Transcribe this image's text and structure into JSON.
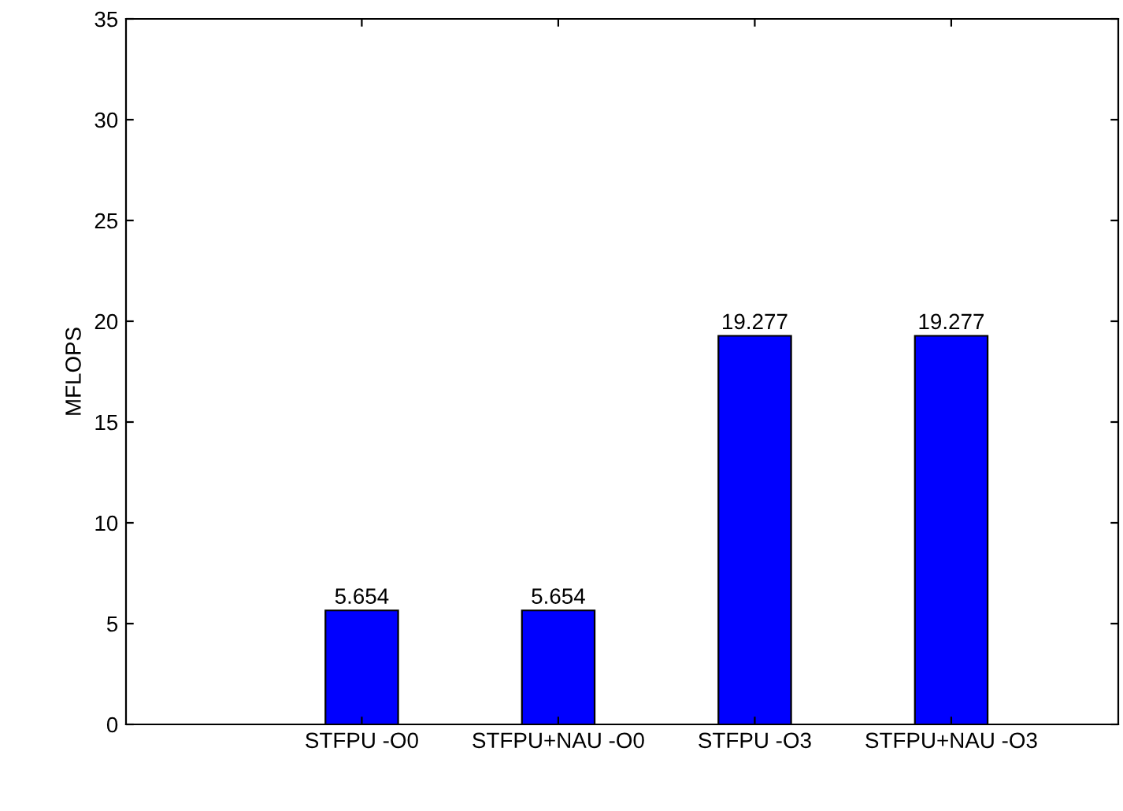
{
  "chart_data": {
    "type": "bar",
    "ylabel": "MFLOPS",
    "categories": [
      "STFPU -O0",
      "STFPU+NAU -O0",
      "STFPU -O3",
      "STFPU+NAU -O3"
    ],
    "values": [
      5.654,
      5.654,
      19.277,
      19.277
    ],
    "color": "#0000ff",
    "ylim": [
      0,
      35
    ],
    "yticks": [
      0,
      5,
      10,
      15,
      20,
      25,
      30,
      35
    ],
    "data_labels": true,
    "grid": false
  }
}
